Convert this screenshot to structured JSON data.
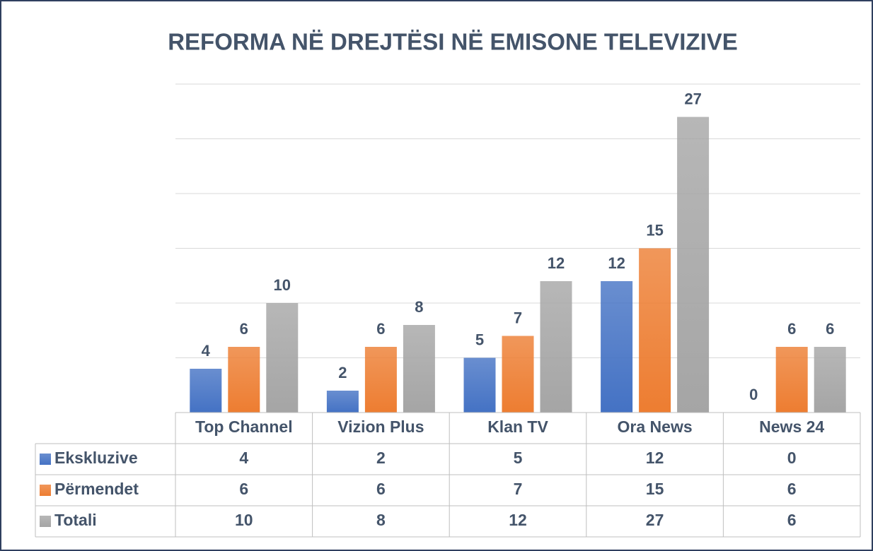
{
  "chart_data": {
    "type": "bar",
    "title": "REFORMA NË DREJTËSI NË EMISONE TELEVIZIVE",
    "categories": [
      "Top Channel",
      "Vizion Plus",
      "Klan TV",
      "Ora News",
      "News 24"
    ],
    "series": [
      {
        "name": "Ekskluzive",
        "color": "#4472c4",
        "values": [
          4,
          2,
          5,
          12,
          0
        ]
      },
      {
        "name": "Përmendet",
        "color": "#ed7d31",
        "values": [
          6,
          6,
          7,
          15,
          6
        ]
      },
      {
        "name": "Totali",
        "color": "#a5a5a5",
        "values": [
          10,
          8,
          12,
          27,
          6
        ]
      }
    ],
    "ylim": [
      0,
      30
    ],
    "yticks": [
      0,
      5,
      10,
      15,
      20,
      25,
      30
    ],
    "grid": true,
    "data_table": true
  }
}
